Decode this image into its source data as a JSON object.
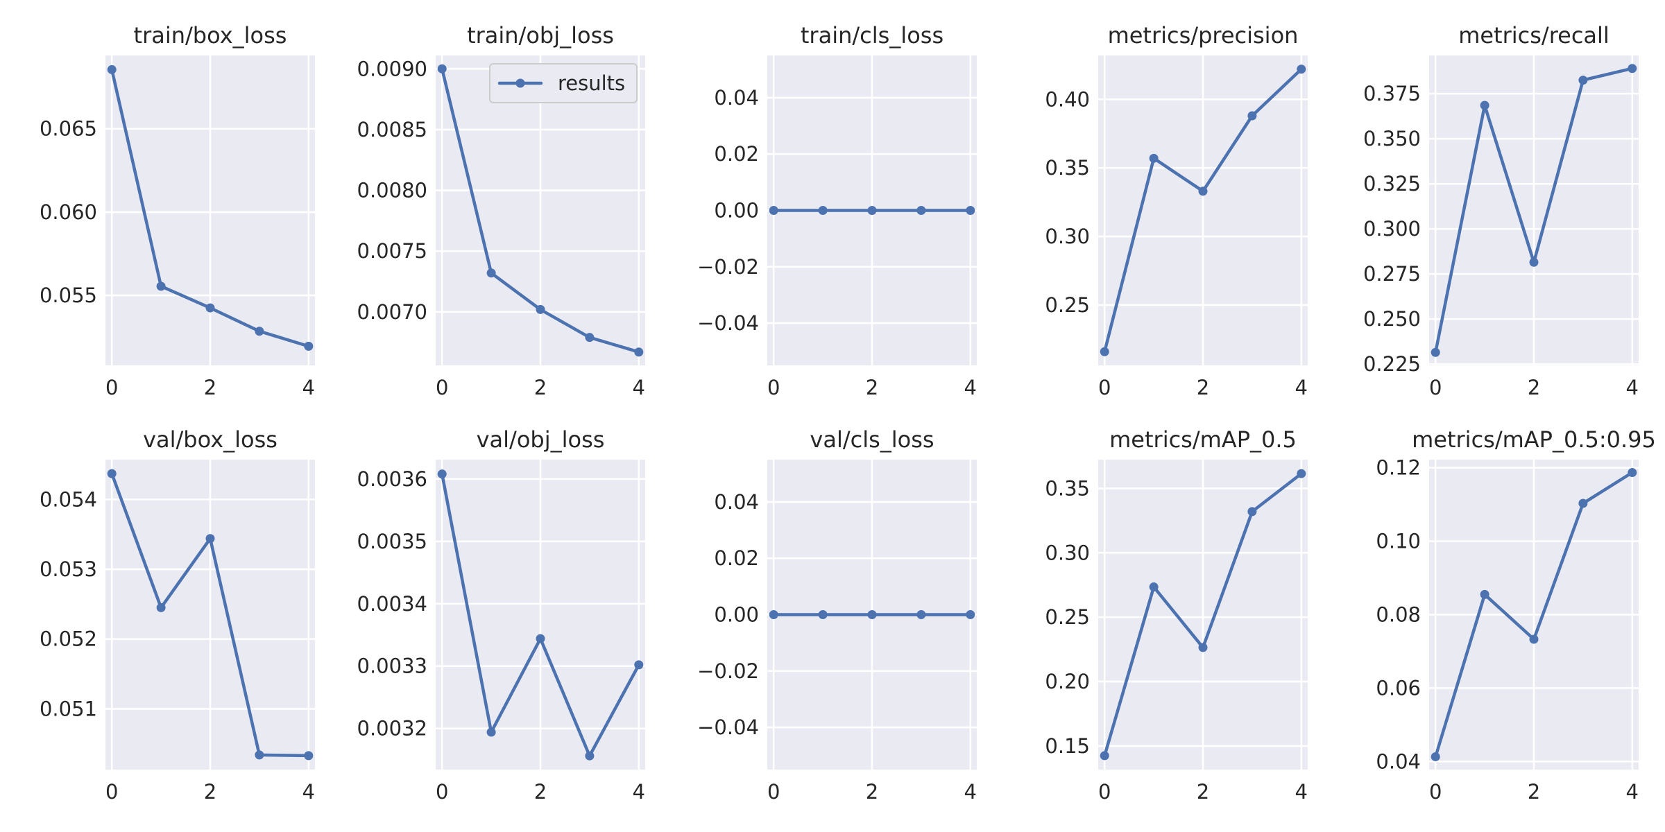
{
  "chart_data": [
    {
      "type": "line",
      "title": "train/box_loss",
      "x": [
        0,
        1,
        2,
        3,
        4
      ],
      "values": [
        0.06855,
        0.05555,
        0.05425,
        0.05285,
        0.05195
      ],
      "xlim": [
        -0.13,
        4.13
      ],
      "ylim": [
        0.0508,
        0.0694
      ],
      "yticks": [
        0.055,
        0.06,
        0.065
      ],
      "ytick_labels": [
        "0.055",
        "0.060",
        "0.065"
      ],
      "xticks": [
        0,
        2,
        4
      ],
      "xtick_labels": [
        "0",
        "2",
        "4"
      ],
      "legend": null
    },
    {
      "type": "line",
      "title": "train/obj_loss",
      "x": [
        0,
        1,
        2,
        3,
        4
      ],
      "values": [
        0.009,
        0.00732,
        0.00702,
        0.00679,
        0.00667
      ],
      "xlim": [
        -0.13,
        4.13
      ],
      "ylim": [
        0.00656,
        0.00911
      ],
      "yticks": [
        0.007,
        0.0075,
        0.008,
        0.0085,
        0.009
      ],
      "ytick_labels": [
        "0.0070",
        "0.0075",
        "0.0080",
        "0.0085",
        "0.0090"
      ],
      "xticks": [
        0,
        2,
        4
      ],
      "xtick_labels": [
        "0",
        "2",
        "4"
      ],
      "legend": {
        "label": "results",
        "position": "upper right"
      }
    },
    {
      "type": "line",
      "title": "train/cls_loss",
      "x": [
        0,
        1,
        2,
        3,
        4
      ],
      "values": [
        0,
        0,
        0,
        0,
        0
      ],
      "xlim": [
        -0.13,
        4.13
      ],
      "ylim": [
        -0.055,
        0.055
      ],
      "yticks": [
        -0.04,
        -0.02,
        0.0,
        0.02,
        0.04
      ],
      "ytick_labels": [
        "−0.04",
        "−0.02",
        "0.00",
        "0.02",
        "0.04"
      ],
      "xticks": [
        0,
        2,
        4
      ],
      "xtick_labels": [
        "0",
        "2",
        "4"
      ],
      "legend": null
    },
    {
      "type": "line",
      "title": "metrics/precision",
      "x": [
        0,
        1,
        2,
        3,
        4
      ],
      "values": [
        0.216,
        0.357,
        0.333,
        0.388,
        0.422
      ],
      "xlim": [
        -0.13,
        4.13
      ],
      "ylim": [
        0.206,
        0.432
      ],
      "yticks": [
        0.25,
        0.3,
        0.35,
        0.4
      ],
      "ytick_labels": [
        "0.25",
        "0.30",
        "0.35",
        "0.40"
      ],
      "xticks": [
        0,
        2,
        4
      ],
      "xtick_labels": [
        "0",
        "2",
        "4"
      ],
      "legend": null
    },
    {
      "type": "line",
      "title": "metrics/recall",
      "x": [
        0,
        1,
        2,
        3,
        4
      ],
      "values": [
        0.2315,
        0.3685,
        0.2815,
        0.3825,
        0.389
      ],
      "xlim": [
        -0.13,
        4.13
      ],
      "ylim": [
        0.2243,
        0.3962
      ],
      "yticks": [
        0.225,
        0.25,
        0.275,
        0.3,
        0.325,
        0.35,
        0.375
      ],
      "ytick_labels": [
        "0.225",
        "0.250",
        "0.275",
        "0.300",
        "0.325",
        "0.350",
        "0.375"
      ],
      "xticks": [
        0,
        2,
        4
      ],
      "xtick_labels": [
        "0",
        "2",
        "4"
      ],
      "legend": null
    },
    {
      "type": "line",
      "title": "val/box_loss",
      "x": [
        0,
        1,
        2,
        3,
        4
      ],
      "values": [
        0.05437,
        0.05245,
        0.05344,
        0.05034,
        0.05033
      ],
      "xlim": [
        -0.13,
        4.13
      ],
      "ylim": [
        0.05013,
        0.05457
      ],
      "yticks": [
        0.051,
        0.052,
        0.053,
        0.054
      ],
      "ytick_labels": [
        "0.051",
        "0.052",
        "0.053",
        "0.054"
      ],
      "xticks": [
        0,
        2,
        4
      ],
      "xtick_labels": [
        "0",
        "2",
        "4"
      ],
      "legend": null
    },
    {
      "type": "line",
      "title": "val/obj_loss",
      "x": [
        0,
        1,
        2,
        3,
        4
      ],
      "values": [
        0.003608,
        0.003194,
        0.003344,
        0.003156,
        0.003302
      ],
      "xlim": [
        -0.13,
        4.13
      ],
      "ylim": [
        0.003134,
        0.003631
      ],
      "yticks": [
        0.0032,
        0.0033,
        0.0034,
        0.0035,
        0.0036
      ],
      "ytick_labels": [
        "0.0032",
        "0.0033",
        "0.0034",
        "0.0035",
        "0.0036"
      ],
      "xticks": [
        0,
        2,
        4
      ],
      "xtick_labels": [
        "0",
        "2",
        "4"
      ],
      "legend": null
    },
    {
      "type": "line",
      "title": "val/cls_loss",
      "x": [
        0,
        1,
        2,
        3,
        4
      ],
      "values": [
        0,
        0,
        0,
        0,
        0
      ],
      "xlim": [
        -0.13,
        4.13
      ],
      "ylim": [
        -0.055,
        0.055
      ],
      "yticks": [
        -0.04,
        -0.02,
        0.0,
        0.02,
        0.04
      ],
      "ytick_labels": [
        "−0.04",
        "−0.02",
        "0.00",
        "0.02",
        "0.04"
      ],
      "xticks": [
        0,
        2,
        4
      ],
      "xtick_labels": [
        "0",
        "2",
        "4"
      ],
      "legend": null
    },
    {
      "type": "line",
      "title": "metrics/mAP_0.5",
      "x": [
        0,
        1,
        2,
        3,
        4
      ],
      "values": [
        0.1425,
        0.2735,
        0.2265,
        0.332,
        0.3615
      ],
      "xlim": [
        -0.13,
        4.13
      ],
      "ylim": [
        0.1317,
        0.3723
      ],
      "yticks": [
        0.15,
        0.2,
        0.25,
        0.3,
        0.35
      ],
      "ytick_labels": [
        "0.15",
        "0.20",
        "0.25",
        "0.30",
        "0.35"
      ],
      "xticks": [
        0,
        2,
        4
      ],
      "xtick_labels": [
        "0",
        "2",
        "4"
      ],
      "legend": null
    },
    {
      "type": "line",
      "title": "metrics/mAP_0.5:0.95",
      "x": [
        0,
        1,
        2,
        3,
        4
      ],
      "values": [
        0.0413,
        0.0855,
        0.0733,
        0.1103,
        0.1187
      ],
      "xlim": [
        -0.13,
        4.13
      ],
      "ylim": [
        0.0378,
        0.1222
      ],
      "yticks": [
        0.04,
        0.06,
        0.08,
        0.1,
        0.12
      ],
      "ytick_labels": [
        "0.04",
        "0.06",
        "0.08",
        "0.10",
        "0.12"
      ],
      "xticks": [
        0,
        2,
        4
      ],
      "xtick_labels": [
        "0",
        "2",
        "4"
      ],
      "legend": null
    }
  ],
  "colors": {
    "series": "#4c72b0",
    "panel_background": "#eaeaf2",
    "grid": "#ffffff",
    "text": "#262626"
  }
}
